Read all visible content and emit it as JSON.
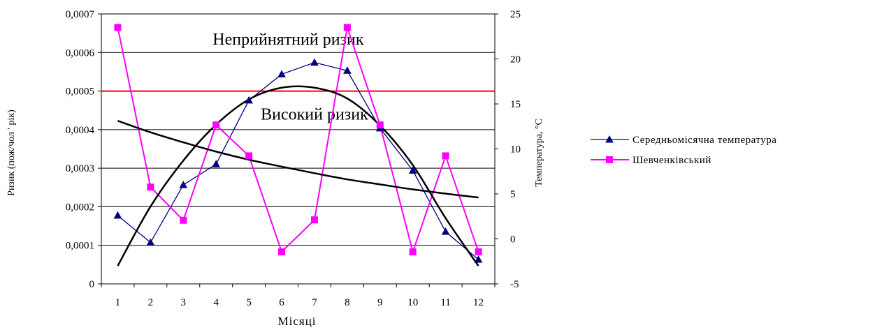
{
  "chart_data": {
    "type": "line",
    "title": "",
    "xlabel": "Місяці",
    "ylabel_left": "Ризик (пож/чол ' рік)",
    "ylabel_right": "Температура, °С",
    "categories": [
      "1",
      "2",
      "3",
      "4",
      "5",
      "6",
      "7",
      "8",
      "9",
      "10",
      "11",
      "12"
    ],
    "ylim_left": [
      0,
      0.0007
    ],
    "ylim_right": [
      -5,
      25
    ],
    "yticks_left": [
      "0",
      "0,0001",
      "0,0002",
      "0,0003",
      "0,0004",
      "0,0005",
      "0,0006",
      "0,0007"
    ],
    "yticks_right": [
      "-5",
      "0",
      "5",
      "10",
      "15",
      "20",
      "25"
    ],
    "grid": true,
    "legend_position": "right",
    "series": [
      {
        "name": "Середньомісячна температура",
        "axis": "right",
        "color": "#000080",
        "marker": "triangle",
        "values": [
          2.6,
          -0.4,
          6.0,
          8.3,
          15.4,
          18.3,
          19.6,
          18.7,
          12.3,
          7.6,
          0.8,
          -2.3
        ]
      },
      {
        "name": "Шевченківський",
        "axis": "left",
        "color": "#ff00ff",
        "marker": "square",
        "values": [
          0.000665,
          0.000251,
          0.000165,
          0.000412,
          0.000332,
          8.3e-05,
          0.000166,
          0.000665,
          0.000412,
          8.3e-05,
          0.000332,
          8.3e-05
        ]
      }
    ],
    "trendlines": [
      {
        "type": "polynomial",
        "axis": "right",
        "color": "#000000",
        "values": [
          -3.0,
          3.6,
          8.7,
          12.7,
          15.5,
          16.8,
          16.8,
          15.6,
          12.6,
          8.2,
          2.3,
          -3.0
        ]
      },
      {
        "type": "power",
        "axis": "left",
        "color": "#000000",
        "values": [
          0.000423,
          0.000393,
          0.000367,
          0.000343,
          0.000322,
          0.000304,
          0.000287,
          0.000271,
          0.000258,
          0.000245,
          0.000234,
          0.000224
        ]
      }
    ],
    "threshold": {
      "value": 0.0005,
      "axis": "left",
      "color": "#ff0000"
    },
    "annotations": [
      {
        "text": "Неприйнятний ризик",
        "x": 6.2,
        "y": 0.000635
      },
      {
        "text": "Високий ризик",
        "x": 7.0,
        "y": 0.00044
      }
    ]
  }
}
